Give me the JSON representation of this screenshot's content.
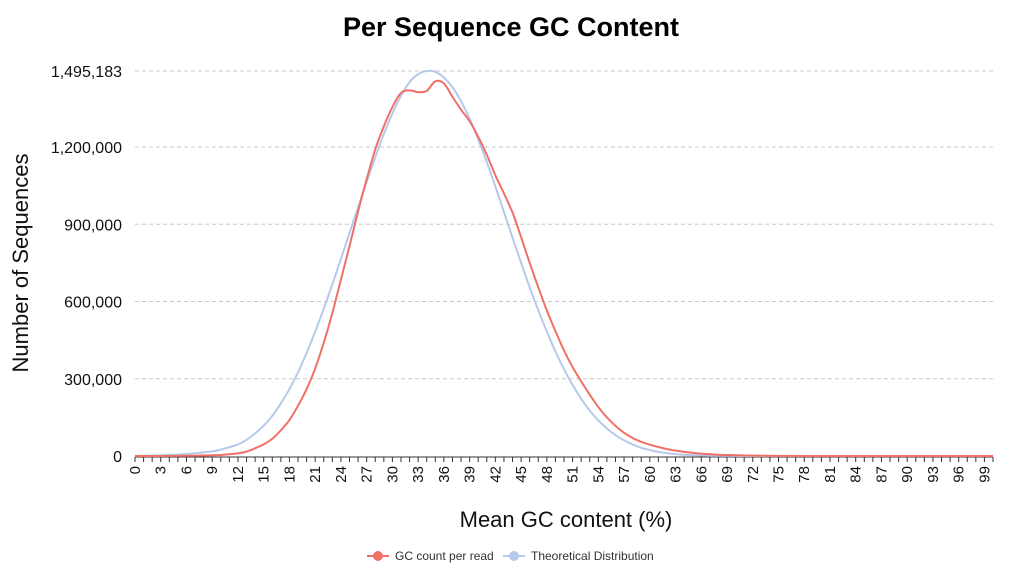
{
  "chart_data": {
    "type": "line",
    "title": "Per Sequence GC Content",
    "xlabel": "Mean GC content (%)",
    "ylabel": "Number of Sequences",
    "xlim": [
      0,
      100
    ],
    "ylim": [
      0,
      1495183
    ],
    "x_ticks": [
      "0",
      "3",
      "6",
      "9",
      "12",
      "15",
      "18",
      "21",
      "24",
      "27",
      "30",
      "33",
      "36",
      "39",
      "42",
      "45",
      "48",
      "51",
      "54",
      "57",
      "60",
      "63",
      "66",
      "69",
      "72",
      "75",
      "78",
      "81",
      "84",
      "87",
      "90",
      "93",
      "96",
      "99"
    ],
    "y_ticks": [
      {
        "value": 0,
        "label": "0"
      },
      {
        "value": 300000,
        "label": "300,000"
      },
      {
        "value": 600000,
        "label": "600,000"
      },
      {
        "value": 900000,
        "label": "900,000"
      },
      {
        "value": 1200000,
        "label": "1,200,000"
      },
      {
        "value": 1495183,
        "label": "1,495,183"
      }
    ],
    "grid": true,
    "legend_position": "bottom",
    "series": [
      {
        "name": "GC count per read",
        "color": "#f07068",
        "x": [
          0,
          3,
          6,
          9,
          10,
          12,
          13,
          14,
          15,
          16,
          17,
          18,
          19,
          20,
          21,
          22,
          23,
          24,
          25,
          26,
          27,
          28,
          29,
          30,
          31,
          32,
          33,
          34,
          35,
          36,
          37,
          38,
          39,
          40,
          41,
          42,
          43,
          44,
          45,
          46,
          47,
          48,
          49,
          50,
          51,
          52,
          53,
          54,
          55,
          56,
          57,
          58,
          59,
          60,
          61,
          62,
          63,
          64,
          65,
          66,
          68,
          70,
          72,
          75,
          80,
          85,
          90,
          95,
          100
        ],
        "y": [
          0,
          0,
          1000,
          3000,
          4000,
          10000,
          17000,
          30000,
          45000,
          67000,
          100000,
          140000,
          195000,
          260000,
          340000,
          440000,
          555000,
          685000,
          815000,
          950000,
          1075000,
          1190000,
          1280000,
          1355000,
          1410000,
          1420000,
          1413000,
          1418000,
          1455000,
          1447000,
          1395000,
          1345000,
          1300000,
          1240000,
          1170000,
          1090000,
          1020000,
          945000,
          850000,
          750000,
          655000,
          565000,
          485000,
          410000,
          345000,
          290000,
          238000,
          190000,
          150000,
          117000,
          90000,
          70000,
          55000,
          44000,
          35000,
          27000,
          21000,
          16000,
          12000,
          9000,
          5000,
          3000,
          1500,
          500,
          0,
          0,
          0,
          0,
          0
        ]
      },
      {
        "name": "Theoretical Distribution",
        "color": "#b7c9ea",
        "x": [
          0,
          3,
          6,
          9,
          10,
          12,
          13,
          14,
          15,
          16,
          17,
          18,
          19,
          20,
          21,
          22,
          23,
          24,
          25,
          26,
          27,
          28,
          29,
          30,
          31,
          32,
          33,
          34,
          35,
          36,
          37,
          38,
          39,
          40,
          41,
          42,
          43,
          44,
          45,
          46,
          47,
          48,
          49,
          50,
          51,
          52,
          53,
          54,
          55,
          56,
          57,
          58,
          59,
          60,
          61,
          62,
          63,
          64,
          65,
          66,
          68,
          70,
          72,
          75,
          80,
          85,
          90,
          95,
          100
        ],
        "y": [
          0,
          3000,
          8000,
          18000,
          25000,
          45000,
          63000,
          88000,
          118000,
          156000,
          204000,
          260000,
          325000,
          400000,
          483000,
          572000,
          667000,
          766000,
          866000,
          966000,
          1065000,
          1160000,
          1250000,
          1330000,
          1398000,
          1452000,
          1483000,
          1495183,
          1492000,
          1470000,
          1432000,
          1378000,
          1310000,
          1230000,
          1142000,
          1047000,
          948000,
          848000,
          750000,
          655000,
          566000,
          483000,
          406000,
          337000,
          276000,
          222000,
          176000,
          138000,
          107000,
          81000,
          61000,
          45000,
          32000,
          23000,
          16000,
          11000,
          7500,
          5000,
          3200,
          2000,
          800,
          300,
          100,
          0,
          0,
          0,
          0,
          0,
          0
        ]
      }
    ]
  }
}
